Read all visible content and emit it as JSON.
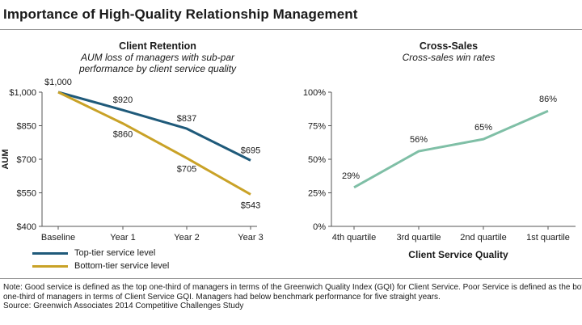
{
  "title": "Importance of High-Quality Relationship Management",
  "chart_data": [
    {
      "type": "line",
      "title": "Client Retention",
      "subtitle_lines": [
        "AUM loss of managers with sub-par",
        "performance by client service quality"
      ],
      "xlabel": "",
      "ylabel": "AUM",
      "categories": [
        "Baseline",
        "Year 1",
        "Year 2",
        "Year 3"
      ],
      "yticks": [
        "$400",
        "$550",
        "$700",
        "$850",
        "$1,000"
      ],
      "ylim": [
        400,
        1000
      ],
      "grid": false,
      "legend_position": "bottom-left",
      "series": [
        {
          "name": "Top-tier service level",
          "color": "#1f5a7a",
          "values": [
            1000,
            920,
            837,
            695
          ],
          "labels": [
            "$1,000",
            "$920",
            "$837",
            "$695"
          ]
        },
        {
          "name": "Bottom-tier service level",
          "color": "#c9a227",
          "values": [
            1000,
            860,
            705,
            543
          ],
          "labels": [
            "",
            "$860",
            "$705",
            "$543"
          ]
        }
      ]
    },
    {
      "type": "line",
      "title": "Cross-Sales",
      "subtitle_lines": [
        "Cross-sales win rates"
      ],
      "xlabel": "Client Service Quality",
      "ylabel": "",
      "categories": [
        "4th quartile",
        "3rd quartile",
        "2nd quartile",
        "1st quartile"
      ],
      "yticks": [
        "0%",
        "25%",
        "50%",
        "75%",
        "100%"
      ],
      "ylim": [
        0,
        100
      ],
      "grid": false,
      "series": [
        {
          "color": "#7fbfa6",
          "values": [
            29,
            56,
            65,
            86
          ],
          "labels": [
            "29%",
            "56%",
            "65%",
            "86%"
          ]
        }
      ]
    }
  ],
  "note_lines": [
    "Note: Good service is defined as the top one-third of managers in terms of the Greenwich Quality Index (GQI) for Client Service. Poor Service is defined as the bottom",
    "one-third of managers in terms of Client Service GQI. Managers had below benchmark performance for five straight years.",
    "Source: Greenwich Associates 2014 Competitive Challenges Study"
  ]
}
